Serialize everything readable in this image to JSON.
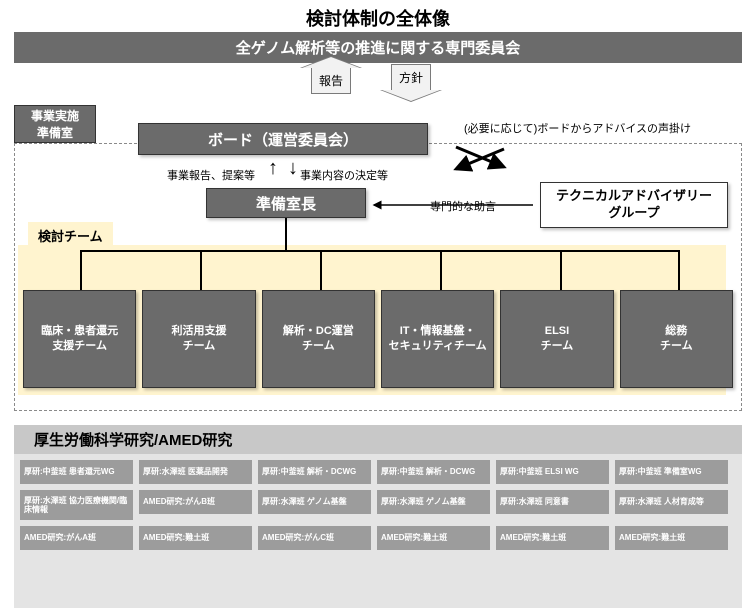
{
  "title": "検討体制の全体像",
  "banner": "全ゲノム解析等の推進に関する専門委員会",
  "arrow_up_label": "報告",
  "arrow_down_label": "方針",
  "prep_office": "事業実施\n準備室",
  "board": "ボード（運営委員会）",
  "advisory_note": "(必要に応じて)ボードからアドバイスの声掛け",
  "label_left": "事業報告、提案等",
  "label_right": "事業内容の決定等",
  "prep_head": "準備室長",
  "advice_label": "専門的な助言",
  "tech_advisory": "テクニカルアドバイザリー\nグループ",
  "team_tab": "検討チーム",
  "teams": [
    "臨床・患者還元\n支援チーム",
    "利活用支援\nチーム",
    "解析・DC運営\nチーム",
    "IT・情報基盤・\nセキュリティチーム",
    "ELSI\nチーム",
    "総務\nチーム"
  ],
  "bottom_header": "厚生労働科学研究/AMED研究",
  "wg_items": [
    "厚研:中釜班 患者還元WG",
    "厚研:水澤班 医薬品開発",
    "厚研:中釜班 解析・DCWG",
    "厚研:中釜班 解析・DCWG",
    "厚研:中釜班 ELSI WG",
    "厚研:中釜班 準備室WG",
    "厚研:水澤班 協力医療機関/臨床情報",
    "AMED研究:がんB班",
    "厚研:水澤班 ゲノム基盤",
    "厚研:水澤班 ゲノム基盤",
    "厚研:水澤班 同意書",
    "厚研:水澤班 人材育成等",
    "AMED研究:がんA班",
    "AMED研究:難土班",
    "AMED研究:がんC班",
    "",
    "",
    "",
    "AMED研究:難土班",
    "",
    "AMED研究:難土班",
    "AMED研究:難土班",
    "",
    ""
  ],
  "colors": {
    "box_bg": "#6b6b6b",
    "box_text": "#ffffff",
    "yellow": "#fff4cf",
    "bottom_bg": "#e4e4e4",
    "bottom_header_bg": "#c8c8c8",
    "wg_bg": "#9c9c9c"
  }
}
